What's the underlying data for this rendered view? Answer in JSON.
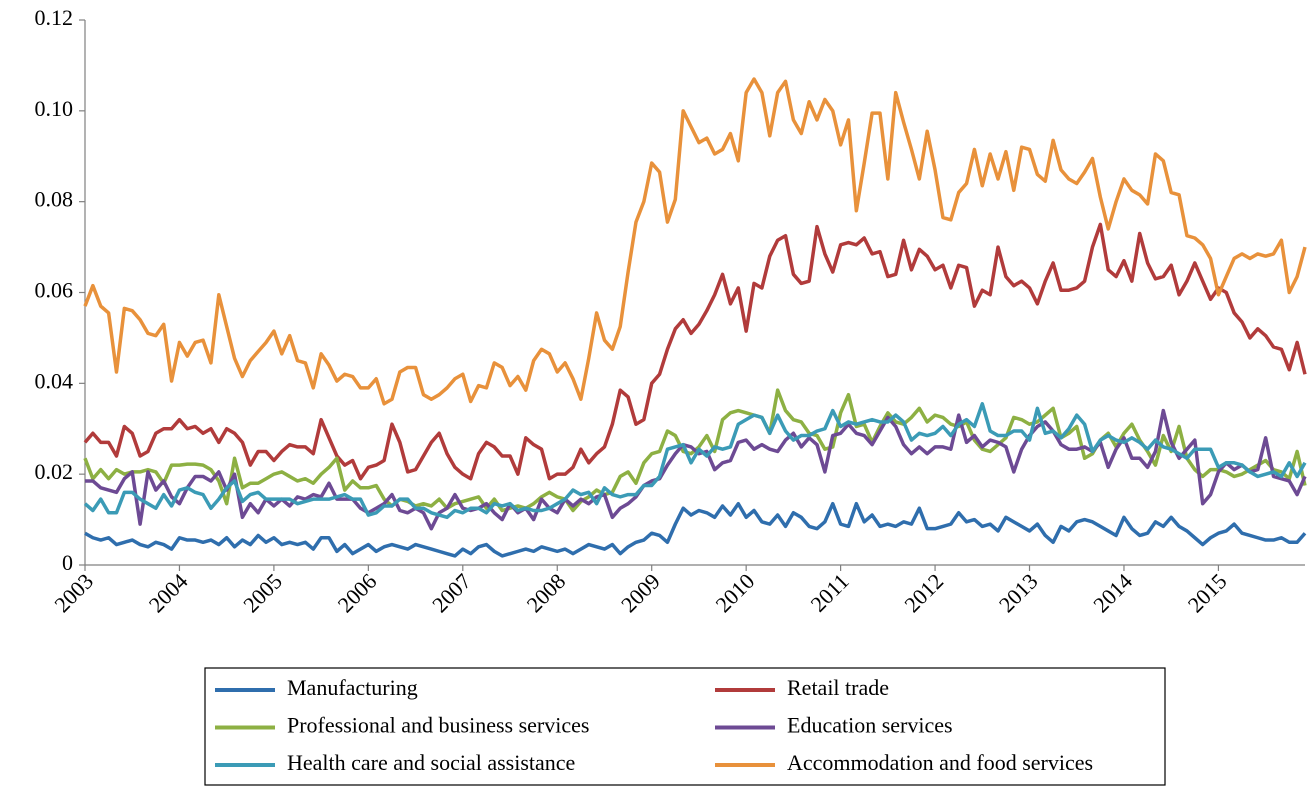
{
  "chart_data": {
    "type": "line",
    "categories": [
      "2003",
      null,
      null,
      null,
      null,
      null,
      null,
      null,
      null,
      null,
      null,
      null,
      "2004",
      null,
      null,
      null,
      null,
      null,
      null,
      null,
      null,
      null,
      null,
      null,
      "2005",
      null,
      null,
      null,
      null,
      null,
      null,
      null,
      null,
      null,
      null,
      null,
      "2006",
      null,
      null,
      null,
      null,
      null,
      null,
      null,
      null,
      null,
      null,
      null,
      "2007",
      null,
      null,
      null,
      null,
      null,
      null,
      null,
      null,
      null,
      null,
      null,
      "2008",
      null,
      null,
      null,
      null,
      null,
      null,
      null,
      null,
      null,
      null,
      null,
      "2009",
      null,
      null,
      null,
      null,
      null,
      null,
      null,
      null,
      null,
      null,
      null,
      "2010",
      null,
      null,
      null,
      null,
      null,
      null,
      null,
      null,
      null,
      null,
      null,
      "2011",
      null,
      null,
      null,
      null,
      null,
      null,
      null,
      null,
      null,
      null,
      null,
      "2012",
      null,
      null,
      null,
      null,
      null,
      null,
      null,
      null,
      null,
      null,
      null,
      "2013",
      null,
      null,
      null,
      null,
      null,
      null,
      null,
      null,
      null,
      null,
      null,
      "2014",
      null,
      null,
      null,
      null,
      null,
      null,
      null,
      null,
      null,
      null,
      null,
      "2015",
      null,
      null,
      null,
      null,
      null,
      null,
      null,
      null,
      null,
      null,
      null
    ],
    "ylim": [
      0,
      0.12
    ],
    "yticks": [
      0,
      0.02,
      0.04,
      0.06,
      0.08,
      {
        "value": 0.1,
        "label": "0.10"
      },
      0.12
    ],
    "grid": false,
    "series": [
      {
        "name": "Manufacturing",
        "color": "#2f6ead",
        "values": [
          0.007,
          0.006,
          0.0055,
          0.006,
          0.0045,
          0.005,
          0.0055,
          0.0045,
          0.004,
          0.005,
          0.0045,
          0.0035,
          0.006,
          0.0055,
          0.0055,
          0.005,
          0.0055,
          0.0045,
          0.006,
          0.004,
          0.0055,
          0.0045,
          0.0065,
          0.005,
          0.006,
          0.0045,
          0.005,
          0.0045,
          0.005,
          0.0035,
          0.006,
          0.006,
          0.003,
          0.0045,
          0.0025,
          0.0035,
          0.0045,
          0.003,
          0.004,
          0.0045,
          0.004,
          0.0035,
          0.0045,
          0.004,
          0.0035,
          0.003,
          0.0025,
          0.002,
          0.0035,
          0.0025,
          0.004,
          0.0045,
          0.003,
          0.002,
          0.0025,
          0.003,
          0.0035,
          0.003,
          0.004,
          0.0035,
          0.003,
          0.0035,
          0.0025,
          0.0035,
          0.0045,
          0.004,
          0.0035,
          0.0045,
          0.0025,
          0.004,
          0.005,
          0.0055,
          0.007,
          0.0065,
          0.005,
          0.009,
          0.0125,
          0.011,
          0.012,
          0.0115,
          0.0105,
          0.013,
          0.011,
          0.0135,
          0.0105,
          0.012,
          0.0095,
          0.009,
          0.011,
          0.0085,
          0.0115,
          0.0105,
          0.0085,
          0.008,
          0.0095,
          0.0135,
          0.009,
          0.0085,
          0.0135,
          0.0095,
          0.011,
          0.0085,
          0.009,
          0.0085,
          0.0095,
          0.009,
          0.0125,
          0.008,
          0.008,
          0.0085,
          0.009,
          0.0115,
          0.0095,
          0.01,
          0.0085,
          0.009,
          0.0075,
          0.0105,
          0.0095,
          0.0085,
          0.0075,
          0.009,
          0.0065,
          0.005,
          0.0085,
          0.0075,
          0.0095,
          0.01,
          0.0095,
          0.0085,
          0.0075,
          0.0065,
          0.0105,
          0.008,
          0.0065,
          0.007,
          0.0095,
          0.0085,
          0.0105,
          0.0085,
          0.0075,
          0.006,
          0.0045,
          0.006,
          0.007,
          0.0075,
          0.009,
          0.007,
          0.0065,
          0.006,
          0.0055,
          0.0055,
          0.006,
          0.005,
          0.005,
          0.007
        ]
      },
      {
        "name": "Retail trade",
        "color": "#b13b3b",
        "values": [
          0.027,
          0.029,
          0.027,
          0.027,
          0.024,
          0.0305,
          0.029,
          0.024,
          0.025,
          0.029,
          0.03,
          0.03,
          0.032,
          0.03,
          0.0305,
          0.029,
          0.03,
          0.027,
          0.03,
          0.029,
          0.027,
          0.022,
          0.025,
          0.025,
          0.023,
          0.025,
          0.0265,
          0.026,
          0.026,
          0.0245,
          0.032,
          0.028,
          0.024,
          0.022,
          0.023,
          0.019,
          0.0215,
          0.022,
          0.023,
          0.031,
          0.027,
          0.0205,
          0.021,
          0.024,
          0.027,
          0.029,
          0.0245,
          0.0215,
          0.02,
          0.019,
          0.0245,
          0.027,
          0.026,
          0.024,
          0.024,
          0.02,
          0.028,
          0.0265,
          0.0255,
          0.019,
          0.02,
          0.02,
          0.0215,
          0.0255,
          0.0225,
          0.0245,
          0.026,
          0.031,
          0.0385,
          0.037,
          0.031,
          0.032,
          0.04,
          0.042,
          0.0475,
          0.052,
          0.054,
          0.051,
          0.053,
          0.056,
          0.0595,
          0.064,
          0.0575,
          0.061,
          0.0515,
          0.062,
          0.061,
          0.068,
          0.0715,
          0.0725,
          0.064,
          0.062,
          0.0625,
          0.0745,
          0.0685,
          0.0645,
          0.0705,
          0.071,
          0.0705,
          0.072,
          0.0685,
          0.069,
          0.0635,
          0.064,
          0.0715,
          0.065,
          0.0695,
          0.068,
          0.065,
          0.066,
          0.061,
          0.066,
          0.0655,
          0.057,
          0.0605,
          0.0595,
          0.07,
          0.0635,
          0.0615,
          0.0625,
          0.061,
          0.0575,
          0.0625,
          0.0665,
          0.0605,
          0.0605,
          0.061,
          0.0625,
          0.07,
          0.075,
          0.065,
          0.0635,
          0.067,
          0.0625,
          0.073,
          0.0665,
          0.063,
          0.0635,
          0.066,
          0.0595,
          0.0625,
          0.0665,
          0.0625,
          0.0585,
          0.061,
          0.06,
          0.0555,
          0.0535,
          0.05,
          0.052,
          0.0505,
          0.048,
          0.0475,
          0.043,
          0.049,
          0.042
        ]
      },
      {
        "name": "Professional and business services",
        "color": "#8db043",
        "values": [
          0.0235,
          0.019,
          0.021,
          0.019,
          0.021,
          0.02,
          0.0205,
          0.0205,
          0.021,
          0.0205,
          0.018,
          0.022,
          0.022,
          0.0222,
          0.0222,
          0.022,
          0.021,
          0.0185,
          0.0135,
          0.0235,
          0.017,
          0.018,
          0.018,
          0.019,
          0.02,
          0.0205,
          0.0195,
          0.0185,
          0.019,
          0.018,
          0.02,
          0.0215,
          0.0235,
          0.0165,
          0.0185,
          0.017,
          0.017,
          0.0175,
          0.0145,
          0.013,
          0.0145,
          0.014,
          0.013,
          0.0135,
          0.013,
          0.0145,
          0.0125,
          0.0135,
          0.014,
          0.0145,
          0.015,
          0.0125,
          0.0145,
          0.012,
          0.0125,
          0.013,
          0.0125,
          0.0135,
          0.015,
          0.016,
          0.015,
          0.0145,
          0.012,
          0.014,
          0.015,
          0.0165,
          0.0155,
          0.016,
          0.0195,
          0.0205,
          0.018,
          0.0225,
          0.0245,
          0.025,
          0.0295,
          0.0285,
          0.025,
          0.0245,
          0.026,
          0.0285,
          0.025,
          0.032,
          0.0335,
          0.034,
          0.0335,
          0.033,
          0.0325,
          0.029,
          0.0385,
          0.034,
          0.032,
          0.0315,
          0.029,
          0.0285,
          0.0255,
          0.026,
          0.0335,
          0.0375,
          0.0305,
          0.031,
          0.027,
          0.0305,
          0.0335,
          0.0315,
          0.031,
          0.0325,
          0.0345,
          0.0315,
          0.033,
          0.0325,
          0.031,
          0.0305,
          0.0315,
          0.0275,
          0.0255,
          0.025,
          0.0265,
          0.028,
          0.0325,
          0.032,
          0.031,
          0.0315,
          0.033,
          0.0345,
          0.028,
          0.029,
          0.0305,
          0.0235,
          0.0245,
          0.0275,
          0.029,
          0.026,
          0.029,
          0.031,
          0.0275,
          0.025,
          0.022,
          0.0285,
          0.025,
          0.0305,
          0.0235,
          0.021,
          0.0195,
          0.021,
          0.021,
          0.0205,
          0.0195,
          0.02,
          0.021,
          0.022,
          0.023,
          0.021,
          0.0205,
          0.019,
          0.025,
          0.0175
        ]
      },
      {
        "name": "Education services",
        "color": "#6d4a94",
        "values": [
          0.0185,
          0.0185,
          0.017,
          0.0165,
          0.016,
          0.019,
          0.0205,
          0.009,
          0.0205,
          0.0165,
          0.0185,
          0.015,
          0.0135,
          0.017,
          0.0195,
          0.0195,
          0.0185,
          0.0205,
          0.0165,
          0.02,
          0.0105,
          0.0135,
          0.0115,
          0.0145,
          0.013,
          0.0145,
          0.013,
          0.015,
          0.0145,
          0.0155,
          0.015,
          0.018,
          0.0145,
          0.0145,
          0.0145,
          0.0125,
          0.0115,
          0.0125,
          0.0135,
          0.0155,
          0.012,
          0.0115,
          0.0125,
          0.0115,
          0.008,
          0.0115,
          0.0125,
          0.0155,
          0.0125,
          0.012,
          0.0125,
          0.0135,
          0.0115,
          0.01,
          0.0135,
          0.0115,
          0.0125,
          0.01,
          0.0145,
          0.0125,
          0.0115,
          0.0145,
          0.013,
          0.0145,
          0.0135,
          0.015,
          0.0155,
          0.0105,
          0.0125,
          0.0135,
          0.015,
          0.0175,
          0.0185,
          0.019,
          0.022,
          0.0245,
          0.0265,
          0.026,
          0.0245,
          0.025,
          0.021,
          0.0225,
          0.023,
          0.027,
          0.0275,
          0.0255,
          0.0265,
          0.0255,
          0.025,
          0.0275,
          0.029,
          0.026,
          0.028,
          0.0265,
          0.0205,
          0.0285,
          0.029,
          0.031,
          0.029,
          0.0285,
          0.0265,
          0.0295,
          0.0325,
          0.0305,
          0.0265,
          0.0245,
          0.026,
          0.0245,
          0.026,
          0.026,
          0.0255,
          0.033,
          0.027,
          0.0285,
          0.026,
          0.0275,
          0.027,
          0.026,
          0.0205,
          0.0255,
          0.0285,
          0.0305,
          0.0315,
          0.0295,
          0.0265,
          0.0255,
          0.0255,
          0.026,
          0.025,
          0.027,
          0.0215,
          0.0255,
          0.028,
          0.0235,
          0.0235,
          0.0215,
          0.025,
          0.034,
          0.027,
          0.0235,
          0.0255,
          0.0275,
          0.0135,
          0.0155,
          0.0205,
          0.0225,
          0.021,
          0.022,
          0.0205,
          0.021,
          0.028,
          0.0195,
          0.019,
          0.0185,
          0.0155,
          0.0195
        ]
      },
      {
        "name": "Health care and social assistance",
        "color": "#3b9bb6",
        "values": [
          0.0135,
          0.012,
          0.0145,
          0.0115,
          0.0115,
          0.016,
          0.016,
          0.0145,
          0.0135,
          0.0125,
          0.0155,
          0.013,
          0.0165,
          0.017,
          0.016,
          0.0155,
          0.0125,
          0.0145,
          0.017,
          0.0185,
          0.014,
          0.0155,
          0.016,
          0.0145,
          0.0145,
          0.0145,
          0.0145,
          0.0135,
          0.014,
          0.0145,
          0.0145,
          0.0145,
          0.015,
          0.0155,
          0.0145,
          0.0145,
          0.011,
          0.0115,
          0.013,
          0.013,
          0.0145,
          0.0145,
          0.0125,
          0.0125,
          0.0115,
          0.011,
          0.0105,
          0.012,
          0.0115,
          0.0125,
          0.0125,
          0.0115,
          0.0135,
          0.013,
          0.0135,
          0.012,
          0.0125,
          0.012,
          0.012,
          0.0125,
          0.0135,
          0.0145,
          0.0165,
          0.0155,
          0.016,
          0.0135,
          0.017,
          0.0155,
          0.015,
          0.0155,
          0.0155,
          0.0175,
          0.0175,
          0.0195,
          0.0255,
          0.026,
          0.0265,
          0.0225,
          0.0255,
          0.024,
          0.026,
          0.0255,
          0.026,
          0.031,
          0.032,
          0.033,
          0.0325,
          0.029,
          0.033,
          0.0295,
          0.0275,
          0.0285,
          0.0285,
          0.0295,
          0.03,
          0.034,
          0.0305,
          0.0315,
          0.031,
          0.0315,
          0.032,
          0.0315,
          0.0315,
          0.033,
          0.0315,
          0.0275,
          0.029,
          0.0285,
          0.029,
          0.0305,
          0.0285,
          0.031,
          0.032,
          0.0305,
          0.0355,
          0.0295,
          0.0285,
          0.0285,
          0.0295,
          0.0295,
          0.0275,
          0.0345,
          0.029,
          0.0295,
          0.028,
          0.03,
          0.033,
          0.031,
          0.025,
          0.0275,
          0.0285,
          0.0275,
          0.027,
          0.028,
          0.027,
          0.0255,
          0.0275,
          0.026,
          0.0255,
          0.0245,
          0.0235,
          0.0255,
          0.0255,
          0.0255,
          0.0215,
          0.0225,
          0.0225,
          0.022,
          0.0205,
          0.0195,
          0.02,
          0.0205,
          0.0195,
          0.0225,
          0.0195,
          0.0225
        ]
      },
      {
        "name": "Accommodation and food services",
        "color": "#e8913b",
        "values": [
          0.057,
          0.0615,
          0.057,
          0.0555,
          0.0425,
          0.0565,
          0.056,
          0.054,
          0.051,
          0.0505,
          0.053,
          0.0405,
          0.049,
          0.046,
          0.049,
          0.0495,
          0.0445,
          0.0595,
          0.0525,
          0.0455,
          0.0415,
          0.045,
          0.047,
          0.049,
          0.0515,
          0.0465,
          0.0505,
          0.045,
          0.0445,
          0.039,
          0.0465,
          0.044,
          0.0405,
          0.042,
          0.0415,
          0.039,
          0.039,
          0.041,
          0.0355,
          0.0365,
          0.0425,
          0.0435,
          0.0435,
          0.0375,
          0.0365,
          0.0375,
          0.039,
          0.041,
          0.042,
          0.036,
          0.0395,
          0.039,
          0.0445,
          0.0435,
          0.0395,
          0.0415,
          0.0385,
          0.045,
          0.0475,
          0.0465,
          0.0425,
          0.0445,
          0.041,
          0.0365,
          0.0455,
          0.0555,
          0.0495,
          0.0475,
          0.0525,
          0.0645,
          0.0755,
          0.08,
          0.0885,
          0.0865,
          0.0755,
          0.0805,
          0.1,
          0.0965,
          0.093,
          0.094,
          0.0905,
          0.0915,
          0.095,
          0.089,
          0.104,
          0.107,
          0.104,
          0.0945,
          0.104,
          0.1065,
          0.098,
          0.095,
          0.102,
          0.098,
          0.1025,
          0.1,
          0.0925,
          0.098,
          0.078,
          0.0885,
          0.0995,
          0.0995,
          0.085,
          0.104,
          0.0975,
          0.0915,
          0.085,
          0.0955,
          0.087,
          0.0765,
          0.076,
          0.082,
          0.084,
          0.0915,
          0.0835,
          0.0905,
          0.085,
          0.091,
          0.0825,
          0.092,
          0.0915,
          0.086,
          0.0845,
          0.0935,
          0.087,
          0.085,
          0.084,
          0.0865,
          0.0895,
          0.081,
          0.074,
          0.08,
          0.085,
          0.0825,
          0.0815,
          0.0795,
          0.0905,
          0.089,
          0.082,
          0.0815,
          0.0725,
          0.072,
          0.0705,
          0.0675,
          0.0595,
          0.0635,
          0.0675,
          0.0685,
          0.0675,
          0.0685,
          0.068,
          0.0685,
          0.0715,
          0.06,
          0.0635,
          0.07
        ]
      }
    ]
  }
}
